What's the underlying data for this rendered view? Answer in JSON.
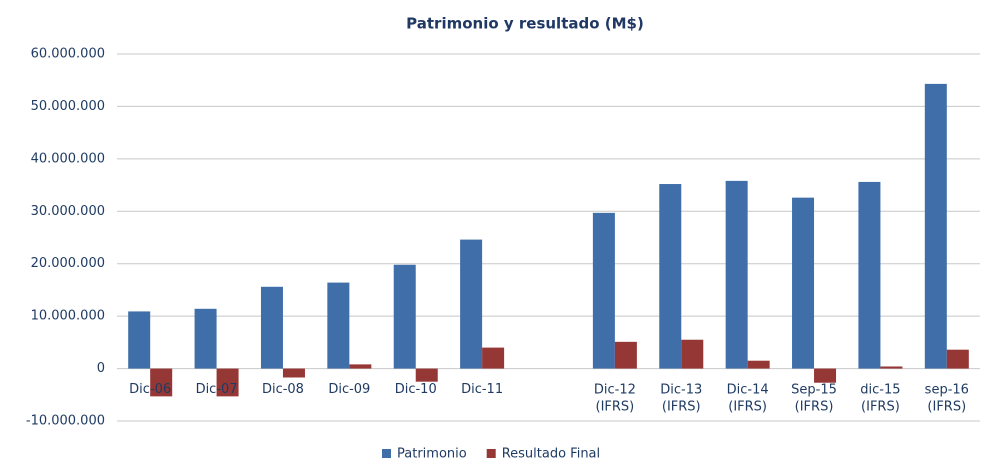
{
  "chart_data": {
    "type": "bar",
    "title": "Patrimonio y resultado (M$)",
    "categories": [
      "Dic-06",
      "Dic-07",
      "Dic-08",
      "Dic-09",
      "Dic-10",
      "Dic-11",
      null,
      "Dic-12\n(IFRS)",
      "Dic-13\n(IFRS)",
      "Dic-14\n(IFRS)",
      "Sep-15\n(IFRS)",
      "dic-15\n(IFRS)",
      "sep-16\n(IFRS)"
    ],
    "series": [
      {
        "name": "Patrimonio",
        "color": "#3f6ea8",
        "values": [
          10900000,
          11400000,
          15600000,
          16400000,
          19800000,
          24600000,
          null,
          29700000,
          35200000,
          35800000,
          32600000,
          35600000,
          54300000
        ]
      },
      {
        "name": "Resultado Final",
        "color": "#953735",
        "values": [
          -5300000,
          -5300000,
          -1700000,
          800000,
          -2500000,
          4000000,
          null,
          5100000,
          5500000,
          1500000,
          -2700000,
          400000,
          3600000
        ]
      }
    ],
    "ylim": [
      -10000000,
      60000000
    ],
    "yticks": [
      {
        "value": -10000000,
        "label": "-10.000.000"
      },
      0,
      {
        "value": 10000000,
        "label": "10.000.000"
      },
      {
        "value": 20000000,
        "label": "20.000.000"
      },
      {
        "value": 30000000,
        "label": "30.000.000"
      },
      {
        "value": 40000000,
        "label": "40.000.000"
      },
      {
        "value": 50000000,
        "label": "50.000.000"
      },
      {
        "value": 60000000,
        "label": "60.000.000"
      }
    ],
    "grid": true,
    "legend": "bottom"
  }
}
